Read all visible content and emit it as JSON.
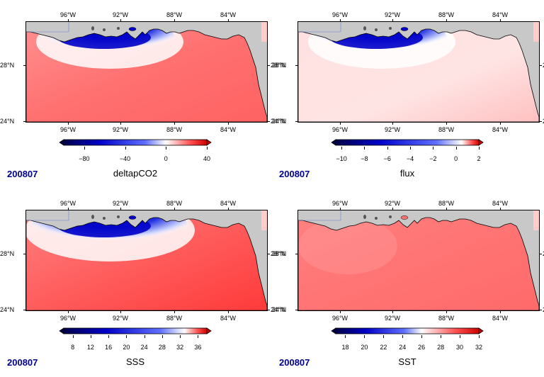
{
  "axes": {
    "lon_labels": [
      "96°W",
      "92°W",
      "88°W",
      "84°W"
    ],
    "lat_labels": [
      "28°N",
      "24°N"
    ]
  },
  "panels": [
    {
      "id": "deltapco2",
      "date": "200807",
      "variable": "deltapCO2",
      "colorbar_ticks": [
        "−80",
        "−40",
        "0",
        "40"
      ],
      "colorbar_range": [
        -100,
        40
      ],
      "colorbar_tick_values": [
        -80,
        -40,
        0,
        40
      ],
      "pattern": "plume",
      "colors": {
        "low": "#0000c8",
        "mid": "#ffffff",
        "high": "#ff5a5a"
      }
    },
    {
      "id": "flux",
      "date": "200807",
      "variable": "flux",
      "colorbar_ticks": [
        "−10",
        "−8",
        "−6",
        "−4",
        "−2",
        "0",
        "2"
      ],
      "colorbar_range": [
        -10.5,
        2
      ],
      "colorbar_tick_values": [
        -10,
        -8,
        -6,
        -4,
        -2,
        0,
        2
      ],
      "pattern": "plume-pale",
      "colors": {
        "low": "#0000c8",
        "mid": "#ffffff",
        "high": "#ff9a9a"
      }
    },
    {
      "id": "sss",
      "date": "200807",
      "variable": "SSS",
      "colorbar_ticks": [
        "8",
        "12",
        "16",
        "20",
        "24",
        "28",
        "32",
        "36"
      ],
      "colorbar_range": [
        6,
        38
      ],
      "colorbar_tick_values": [
        8,
        12,
        16,
        20,
        24,
        28,
        32,
        36
      ],
      "pattern": "plume-wide",
      "colors": {
        "low": "#0000c8",
        "mid": "#ffffff",
        "high": "#ff4040"
      }
    },
    {
      "id": "sst",
      "date": "200807",
      "variable": "SST",
      "colorbar_ticks": [
        "18",
        "20",
        "22",
        "24",
        "26",
        "28",
        "30",
        "32"
      ],
      "colorbar_range": [
        17,
        32
      ],
      "colorbar_tick_values": [
        18,
        20,
        22,
        24,
        26,
        28,
        30,
        32
      ],
      "pattern": "uniform",
      "colors": {
        "low": "#0000c8",
        "mid": "#ffffff",
        "high": "#ff5050"
      }
    }
  ]
}
